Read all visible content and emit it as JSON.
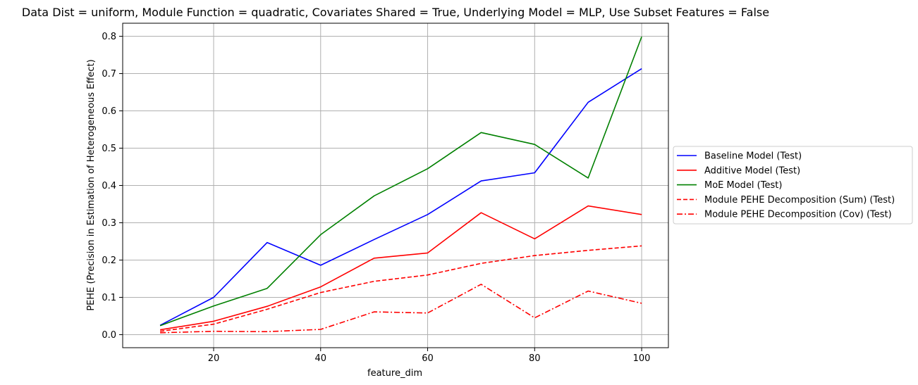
{
  "chart_data": {
    "type": "line",
    "title": "Data Dist = uniform, Module Function = quadratic, Covariates Shared = True, Underlying Model = MLP, Use Subset Features = False",
    "xlabel": "feature_dim",
    "ylabel": "PEHE (Precision in Estimation of Heterogeneous Effect)",
    "xlim": [
      3,
      105
    ],
    "ylim": [
      -0.035,
      0.835
    ],
    "x_ticks": [
      20,
      40,
      60,
      80,
      100
    ],
    "y_ticks": [
      0.0,
      0.1,
      0.2,
      0.3,
      0.4,
      0.5,
      0.6,
      0.7,
      0.8
    ],
    "x_tick_labels": [
      "20",
      "40",
      "60",
      "80",
      "100"
    ],
    "y_tick_labels": [
      "0.0",
      "0.1",
      "0.2",
      "0.3",
      "0.4",
      "0.5",
      "0.6",
      "0.7",
      "0.8"
    ],
    "grid": true,
    "legend_position": "right, outside",
    "x": [
      10,
      20,
      30,
      40,
      50,
      60,
      70,
      80,
      90,
      100
    ],
    "series": [
      {
        "name": "Baseline Model (Test)",
        "color": "#0000ff",
        "dash": "solid",
        "values": [
          0.025,
          0.1,
          0.247,
          0.186,
          0.255,
          0.322,
          0.412,
          0.434,
          0.623,
          0.713
        ]
      },
      {
        "name": "Additive Model (Test)",
        "color": "#ff0000",
        "dash": "solid",
        "values": [
          0.013,
          0.036,
          0.076,
          0.128,
          0.205,
          0.219,
          0.327,
          0.257,
          0.345,
          0.322
        ]
      },
      {
        "name": "MoE Model (Test)",
        "color": "#008000",
        "dash": "solid",
        "values": [
          0.024,
          0.077,
          0.124,
          0.268,
          0.372,
          0.445,
          0.542,
          0.51,
          0.42,
          0.799
        ]
      },
      {
        "name": "Module PEHE Decomposition (Sum) (Test)",
        "color": "#ff0000",
        "dash": "dashed",
        "values": [
          0.009,
          0.028,
          0.068,
          0.113,
          0.143,
          0.16,
          0.191,
          0.212,
          0.226,
          0.238
        ]
      },
      {
        "name": "Module PEHE Decomposition (Cov) (Test)",
        "color": "#ff0000",
        "dash": "dashdot",
        "values": [
          0.005,
          0.009,
          0.008,
          0.014,
          0.061,
          0.058,
          0.135,
          0.045,
          0.117,
          0.084
        ]
      }
    ]
  }
}
